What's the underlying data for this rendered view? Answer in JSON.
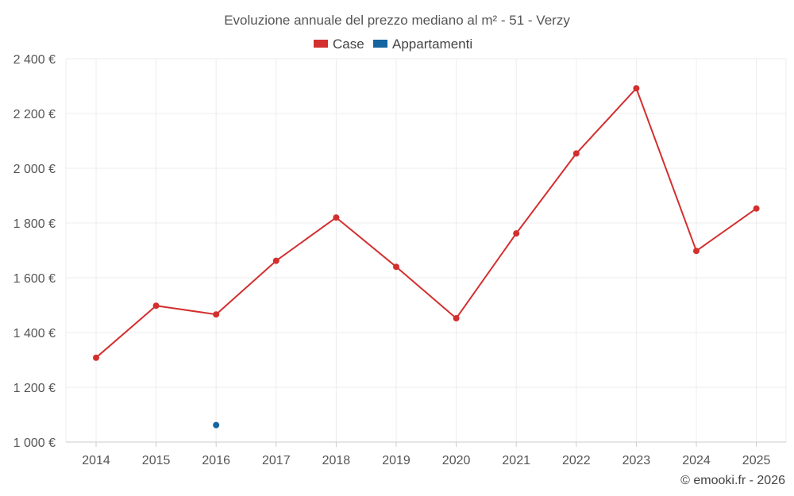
{
  "chart_data": {
    "type": "line",
    "title": "Evoluzione annuale del prezzo mediano al m² - 51 - Verzy",
    "xlabel": "",
    "ylabel": "",
    "categories": [
      "2014",
      "2015",
      "2016",
      "2017",
      "2018",
      "2019",
      "2020",
      "2021",
      "2022",
      "2023",
      "2024",
      "2025"
    ],
    "series": [
      {
        "name": "Case",
        "color": "#d32f2f",
        "values": [
          1308,
          1498,
          1466,
          1662,
          1820,
          1640,
          1452,
          1762,
          2054,
          2292,
          1698,
          1853
        ]
      },
      {
        "name": "Appartamenti",
        "color": "#1565a0",
        "values": [
          null,
          null,
          1062,
          null,
          null,
          null,
          null,
          null,
          null,
          null,
          null,
          null
        ]
      }
    ],
    "ylim": [
      1000,
      2400
    ],
    "yticks": [
      1000,
      1200,
      1400,
      1600,
      1800,
      2000,
      2200,
      2400
    ],
    "ytick_labels": [
      "1 000 €",
      "1 200 €",
      "1 400 €",
      "1 600 €",
      "1 800 €",
      "2 000 €",
      "2 200 €",
      "2 400 €"
    ],
    "grid": true,
    "legend": "top-center"
  },
  "credit": "© emooki.fr - 2026"
}
